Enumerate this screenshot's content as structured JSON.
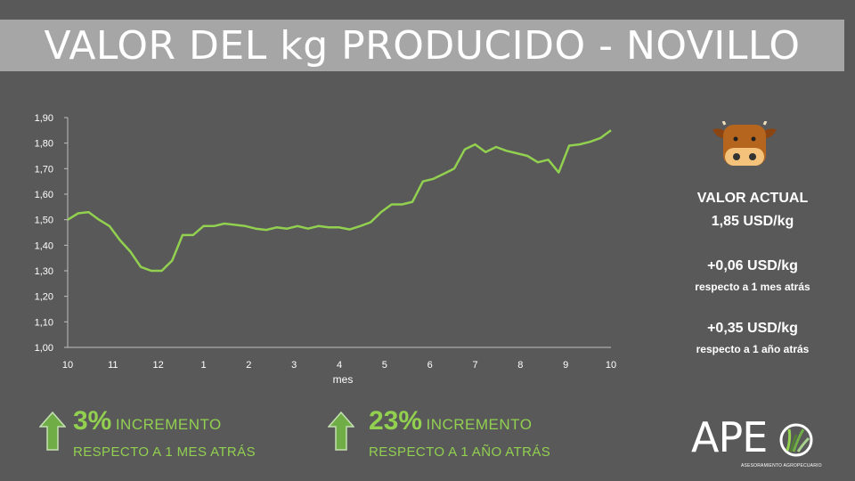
{
  "title": "VALOR DEL kg PRODUCIDO - NOVILLO",
  "chart_data": {
    "type": "line",
    "xlabel": "mes",
    "ylabel": "",
    "ylim": [
      1.0,
      1.9
    ],
    "y_ticks": [
      "1,00",
      "1,10",
      "1,20",
      "1,30",
      "1,40",
      "1,50",
      "1,60",
      "1,70",
      "1,80",
      "1,90"
    ],
    "x_tick_labels": [
      "10",
      "11",
      "12",
      "1",
      "2",
      "3",
      "4",
      "5",
      "6",
      "7",
      "8",
      "9",
      "10"
    ],
    "grid": false,
    "line_color": "#92d050",
    "series": [
      {
        "values": [
          1.5,
          1.525,
          1.53,
          1.5,
          1.475,
          1.42,
          1.375,
          1.315,
          1.3,
          1.3,
          1.34,
          1.44,
          1.44,
          1.475,
          1.475,
          1.485,
          1.48,
          1.475,
          1.465,
          1.46,
          1.47,
          1.465,
          1.475,
          1.465,
          1.475,
          1.47,
          1.47,
          1.462,
          1.475,
          1.49,
          1.53,
          1.56,
          1.56,
          1.57,
          1.65,
          1.66,
          1.68,
          1.7,
          1.775,
          1.795,
          1.765,
          1.785,
          1.77,
          1.76,
          1.75,
          1.725,
          1.735,
          1.685,
          1.79,
          1.795,
          1.805,
          1.82,
          1.85
        ]
      }
    ]
  },
  "side": {
    "actual_label": "VALOR ACTUAL",
    "actual_value": "1,85 USD/kg",
    "month_delta": "+0,06 USD/kg",
    "month_ref": "respecto a 1 mes atrás",
    "year_delta": "+0,35 USD/kg",
    "year_ref": "respecto a 1 año atrás"
  },
  "increments": [
    {
      "pct": "3%",
      "word": "INCREMENTO",
      "sub": "RESPECTO  A 1 MES ATRÁS"
    },
    {
      "pct": "23%",
      "word": "INCREMENTO",
      "sub": "RESPECTO  A 1 AÑO ATRÁS"
    }
  ],
  "logo": {
    "name": "APE",
    "subtitle": "ASESORAMIENTO AGROPECUARIO"
  },
  "colors": {
    "accent_green": "#92d050",
    "background": "#595959",
    "title_bar": "#a6a6a6",
    "arrow_green": "#70ad47"
  },
  "icons": [
    "cow-icon",
    "up-arrow-icon",
    "up-arrow-icon",
    "grass-circle-icon"
  ]
}
